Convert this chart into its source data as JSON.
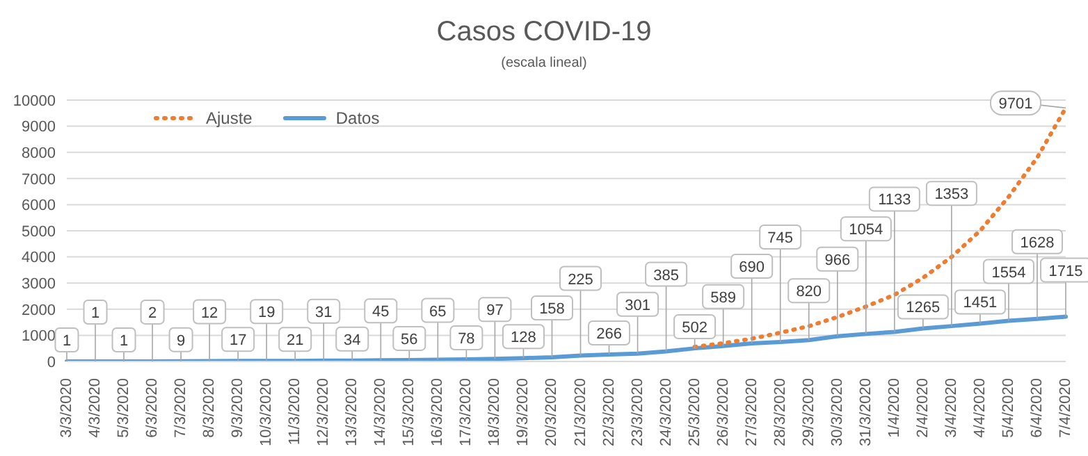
{
  "chart_data": {
    "type": "line",
    "title": "Casos COVID-19",
    "subtitle": "(escala lineal)",
    "categories": [
      "3/3/2020",
      "4/3/2020",
      "5/3/2020",
      "6/3/2020",
      "7/3/2020",
      "8/3/2020",
      "9/3/2020",
      "10/3/2020",
      "11/3/2020",
      "12/3/2020",
      "13/3/2020",
      "14/3/2020",
      "15/3/2020",
      "16/3/2020",
      "17/3/2020",
      "18/3/2020",
      "19/3/2020",
      "20/3/2020",
      "21/3/2020",
      "22/3/2020",
      "23/3/2020",
      "24/3/2020",
      "25/3/2020",
      "26/3/2020",
      "27/3/2020",
      "28/3/2020",
      "29/3/2020",
      "30/3/2020",
      "31/3/2020",
      "1/4/2020",
      "2/4/2020",
      "3/4/2020",
      "4/4/2020",
      "5/4/2020",
      "6/4/2020",
      "7/4/2020"
    ],
    "series": [
      {
        "name": "Ajuste",
        "color": "#ed7d31",
        "line_style": "dotted",
        "values": [
          null,
          null,
          null,
          null,
          null,
          null,
          null,
          null,
          null,
          null,
          null,
          null,
          null,
          null,
          null,
          null,
          null,
          null,
          null,
          null,
          null,
          null,
          560,
          700,
          870,
          1100,
          1350,
          1700,
          2100,
          2550,
          3200,
          4000,
          5000,
          6300,
          7800,
          9701
        ],
        "value_labels": [
          null,
          null,
          null,
          null,
          null,
          null,
          null,
          null,
          null,
          null,
          null,
          null,
          null,
          null,
          null,
          null,
          null,
          null,
          null,
          null,
          null,
          null,
          null,
          null,
          null,
          null,
          null,
          null,
          null,
          null,
          null,
          null,
          null,
          null,
          null,
          "9701"
        ]
      },
      {
        "name": "Datos",
        "color": "#5b9bd5",
        "line_style": "solid",
        "values": [
          1,
          1,
          1,
          2,
          9,
          12,
          17,
          19,
          21,
          31,
          34,
          45,
          56,
          65,
          78,
          97,
          128,
          158,
          225,
          266,
          301,
          385,
          502,
          589,
          690,
          745,
          820,
          966,
          1054,
          1133,
          1265,
          1353,
          1451,
          1554,
          1628,
          1715
        ],
        "value_labels": [
          "1",
          "1",
          "1",
          "2",
          "9",
          "12",
          "17",
          "19",
          "21",
          "31",
          "34",
          "45",
          "56",
          "65",
          "78",
          "97",
          "128",
          "158",
          "225",
          "266",
          "301",
          "385",
          "502",
          "589",
          "690",
          "745",
          "820",
          "966",
          "1054",
          "1133",
          "1265",
          "1353",
          "1451",
          "1554",
          "1628",
          "1715"
        ]
      }
    ],
    "ylim": [
      0,
      10000
    ],
    "yticks": [
      0,
      1000,
      2000,
      3000,
      4000,
      5000,
      6000,
      7000,
      8000,
      9000,
      10000
    ],
    "grid": "y",
    "legend": "top left",
    "marker": "none"
  }
}
